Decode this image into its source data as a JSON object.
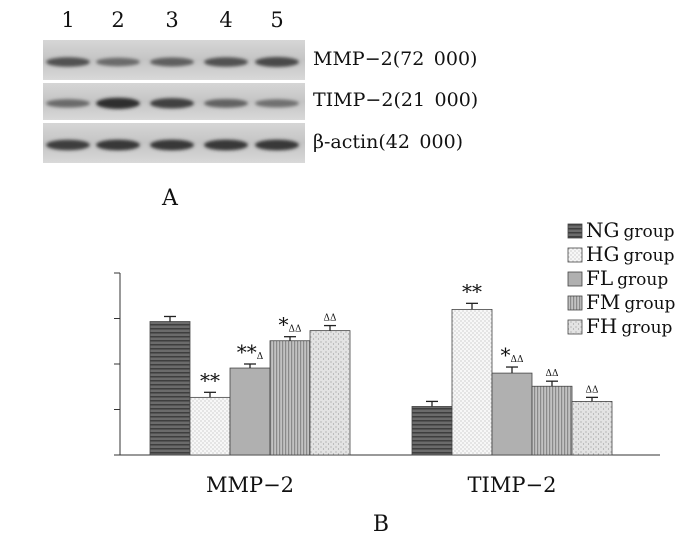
{
  "panel_a": {
    "label": "A",
    "lanes": [
      "1",
      "2",
      "3",
      "4",
      "5"
    ],
    "blots": [
      {
        "protein": "MMP−2",
        "mw": "(72 000)",
        "intensities": [
          0.7,
          0.55,
          0.62,
          0.7,
          0.74
        ]
      },
      {
        "protein": "TIMP−2",
        "mw": "(21 000)",
        "intensities": [
          0.55,
          0.9,
          0.8,
          0.6,
          0.52
        ]
      },
      {
        "protein": "β-actin",
        "mw": "(42 000)",
        "intensities": [
          0.82,
          0.85,
          0.85,
          0.85,
          0.85
        ]
      }
    ]
  },
  "panel_b_label": "B",
  "chart_data": {
    "type": "bar",
    "title": "",
    "xlabel": "",
    "ylabel": "",
    "ylim": [
      0,
      1.8
    ],
    "y_tick_labels_shown": false,
    "categories": [
      "MMP−2",
      "TIMP−2"
    ],
    "legend_position": "top-right",
    "series": [
      {
        "name": "NG group",
        "color": "#5a5a5a",
        "pattern": "dark-stripes",
        "values": [
          1.32,
          0.48
        ],
        "errors": [
          0.05,
          0.05
        ],
        "annotations": [
          "",
          ""
        ]
      },
      {
        "name": "HG group",
        "color": "#f2f2f2",
        "pattern": "light-dots",
        "values": [
          0.57,
          1.44
        ],
        "errors": [
          0.05,
          0.06
        ],
        "annotations": [
          "**",
          "**"
        ]
      },
      {
        "name": "FL group",
        "color": "#b3b3b3",
        "pattern": "solid-gray",
        "values": [
          0.86,
          0.81
        ],
        "errors": [
          0.04,
          0.06
        ],
        "annotations": [
          "**Δ",
          "*ΔΔ"
        ]
      },
      {
        "name": "FM group",
        "color": "#a6a6a6",
        "pattern": "vertical-stripes",
        "values": [
          1.13,
          0.68
        ],
        "errors": [
          0.04,
          0.05
        ],
        "annotations": [
          "*ΔΔ",
          "ΔΔ"
        ]
      },
      {
        "name": "FH group",
        "color": "#d8d8d8",
        "pattern": "light-speckle",
        "values": [
          1.23,
          0.53
        ],
        "errors": [
          0.05,
          0.04
        ],
        "annotations": [
          "ΔΔ",
          "ΔΔ"
        ]
      }
    ]
  }
}
